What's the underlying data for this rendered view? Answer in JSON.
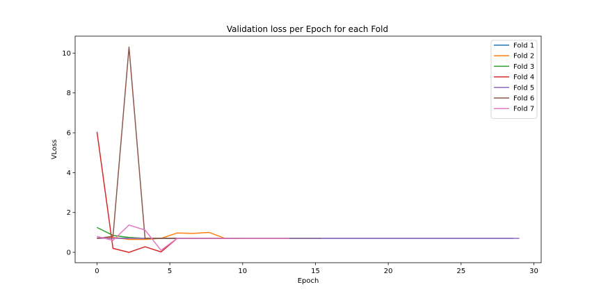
{
  "chart_data": {
    "type": "line",
    "title": "Validation loss per Epoch for each Fold",
    "xlabel": "Epoch",
    "ylabel": "VLoss",
    "xlim": [
      -1.5,
      30.5
    ],
    "ylim": [
      -0.52,
      10.85
    ],
    "xticks": [
      0,
      5,
      10,
      15,
      20,
      25,
      30
    ],
    "yticks": [
      0,
      2,
      4,
      6,
      8,
      10
    ],
    "grid": false,
    "legend_position": "top-right",
    "series": [
      {
        "name": "Fold 1",
        "color": "#1f77b4",
        "x": [
          0,
          1.1,
          2.2,
          3.3,
          4.4,
          5.5,
          6.6,
          7.7,
          8.8,
          9.9,
          11,
          12.1,
          13.2,
          14.3,
          15.4,
          16.5,
          17.6,
          18.7,
          19.8,
          20.9,
          22,
          23.1,
          24.2,
          25.3,
          26.4,
          27.5,
          28.6
        ],
        "y": [
          0.72,
          0.72,
          0.71,
          0.7,
          0.7,
          0.7,
          0.7,
          0.7,
          0.7,
          0.7,
          0.7,
          0.7,
          0.7,
          0.7,
          0.7,
          0.7,
          0.7,
          0.7,
          0.7,
          0.7,
          0.7,
          0.7,
          0.7,
          0.7,
          0.7,
          0.7,
          0.7
        ]
      },
      {
        "name": "Fold 2",
        "color": "#ff7f0e",
        "x": [
          0,
          1.1,
          2.2,
          3.3,
          4.4,
          5.5,
          6.6,
          7.7,
          8.8,
          9.9,
          11,
          12.1,
          13.2,
          14.3,
          15.4
        ],
        "y": [
          0.7,
          0.75,
          0.65,
          0.65,
          0.7,
          0.97,
          0.95,
          1.0,
          0.7,
          0.7,
          0.7,
          0.7,
          0.7,
          0.7,
          0.7
        ]
      },
      {
        "name": "Fold 3",
        "color": "#2ca02c",
        "x": [
          0,
          1.1,
          2.2,
          3.3,
          4.4,
          5.5,
          6.6,
          7.7,
          8.8,
          9.9,
          11,
          12.1,
          13.2,
          14.3,
          15.4
        ],
        "y": [
          1.25,
          0.85,
          0.75,
          0.7,
          0.7,
          0.7,
          0.7,
          0.7,
          0.7,
          0.7,
          0.7,
          0.7,
          0.7,
          0.7,
          0.7
        ]
      },
      {
        "name": "Fold 4",
        "color": "#d62728",
        "x": [
          0,
          1.1,
          2.2,
          3.3,
          4.4,
          5.5
        ],
        "y": [
          6.05,
          0.2,
          0.0,
          0.28,
          0.02,
          0.7
        ]
      },
      {
        "name": "Fold 5",
        "color": "#9467bd",
        "x": [
          0,
          1.1,
          2.2,
          3.3,
          4.4,
          5.5,
          6.6,
          7.7,
          8.8,
          9.9,
          11,
          12.1,
          13.2,
          14.3,
          15.4,
          16.5,
          17.6,
          18.7,
          19.8,
          20.9,
          22,
          23.1,
          24.2,
          25.3,
          26.4,
          27.5,
          28.6,
          29
        ],
        "y": [
          0.7,
          0.7,
          0.7,
          0.7,
          0.7,
          0.7,
          0.7,
          0.7,
          0.7,
          0.7,
          0.7,
          0.7,
          0.7,
          0.7,
          0.7,
          0.7,
          0.7,
          0.7,
          0.7,
          0.7,
          0.7,
          0.7,
          0.7,
          0.7,
          0.7,
          0.7,
          0.7,
          0.7
        ]
      },
      {
        "name": "Fold 6",
        "color": "#8c564b",
        "x": [
          0,
          1.1,
          2.2,
          3.3,
          4.4,
          5.5,
          6.6,
          7.7,
          8.8,
          9.9
        ],
        "y": [
          0.7,
          0.8,
          10.3,
          0.7,
          0.7,
          0.7,
          0.7,
          0.7,
          0.7,
          0.7
        ]
      },
      {
        "name": "Fold 7",
        "color": "#e377c2",
        "x": [
          0,
          1.1,
          2.2,
          3.3,
          4.4,
          5.5,
          6.6,
          7.7,
          8.8,
          9.9,
          11,
          12.1,
          13.2
        ],
        "y": [
          0.8,
          0.6,
          1.37,
          1.12,
          0.1,
          0.7,
          0.7,
          0.7,
          0.7,
          0.7,
          0.7,
          0.7,
          0.7
        ]
      }
    ]
  }
}
